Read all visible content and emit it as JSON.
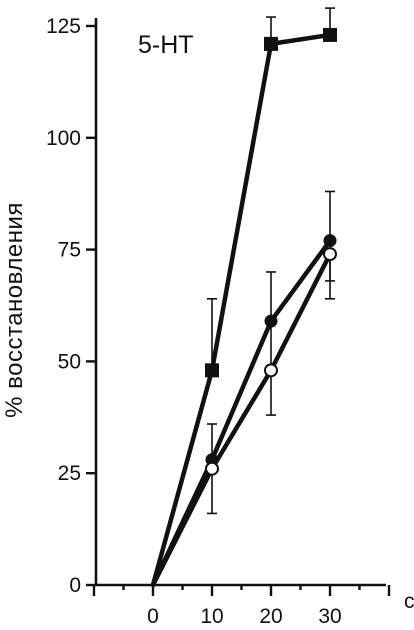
{
  "chart_data": {
    "type": "line",
    "title": "5-HT",
    "xlabel": "",
    "ylabel": "% восстановления",
    "x_tick_labels": [
      "0",
      "10",
      "20",
      "30"
    ],
    "y_tick_labels": [
      "0",
      "25",
      "50",
      "75",
      "100",
      "125"
    ],
    "x_axis_end_mark": "с",
    "xlim": [
      -10,
      40
    ],
    "ylim": [
      0,
      128
    ],
    "grid": false,
    "series": [
      {
        "marker": "filled-square",
        "points": [
          {
            "x": 0,
            "y": 0
          },
          {
            "x": 10,
            "y": 48,
            "err_low": 48,
            "err_high": 64
          },
          {
            "x": 20,
            "y": 121,
            "err_low": 121,
            "err_high": 127
          },
          {
            "x": 30,
            "y": 123,
            "err_low": 123,
            "err_high": 129
          }
        ]
      },
      {
        "marker": "filled-circle",
        "points": [
          {
            "x": 0,
            "y": 0
          },
          {
            "x": 10,
            "y": 28,
            "err_low": 28,
            "err_high": 36
          },
          {
            "x": 20,
            "y": 59,
            "err_low": 49,
            "err_high": 70
          },
          {
            "x": 30,
            "y": 77,
            "err_low": 68,
            "err_high": 88
          }
        ]
      },
      {
        "marker": "open-circle",
        "points": [
          {
            "x": 0,
            "y": 0
          },
          {
            "x": 10,
            "y": 26,
            "err_low": 16,
            "err_high": 26
          },
          {
            "x": 20,
            "y": 48,
            "err_low": 38,
            "err_high": 48
          },
          {
            "x": 30,
            "y": 74,
            "err_low": 64,
            "err_high": 74
          }
        ]
      }
    ]
  }
}
